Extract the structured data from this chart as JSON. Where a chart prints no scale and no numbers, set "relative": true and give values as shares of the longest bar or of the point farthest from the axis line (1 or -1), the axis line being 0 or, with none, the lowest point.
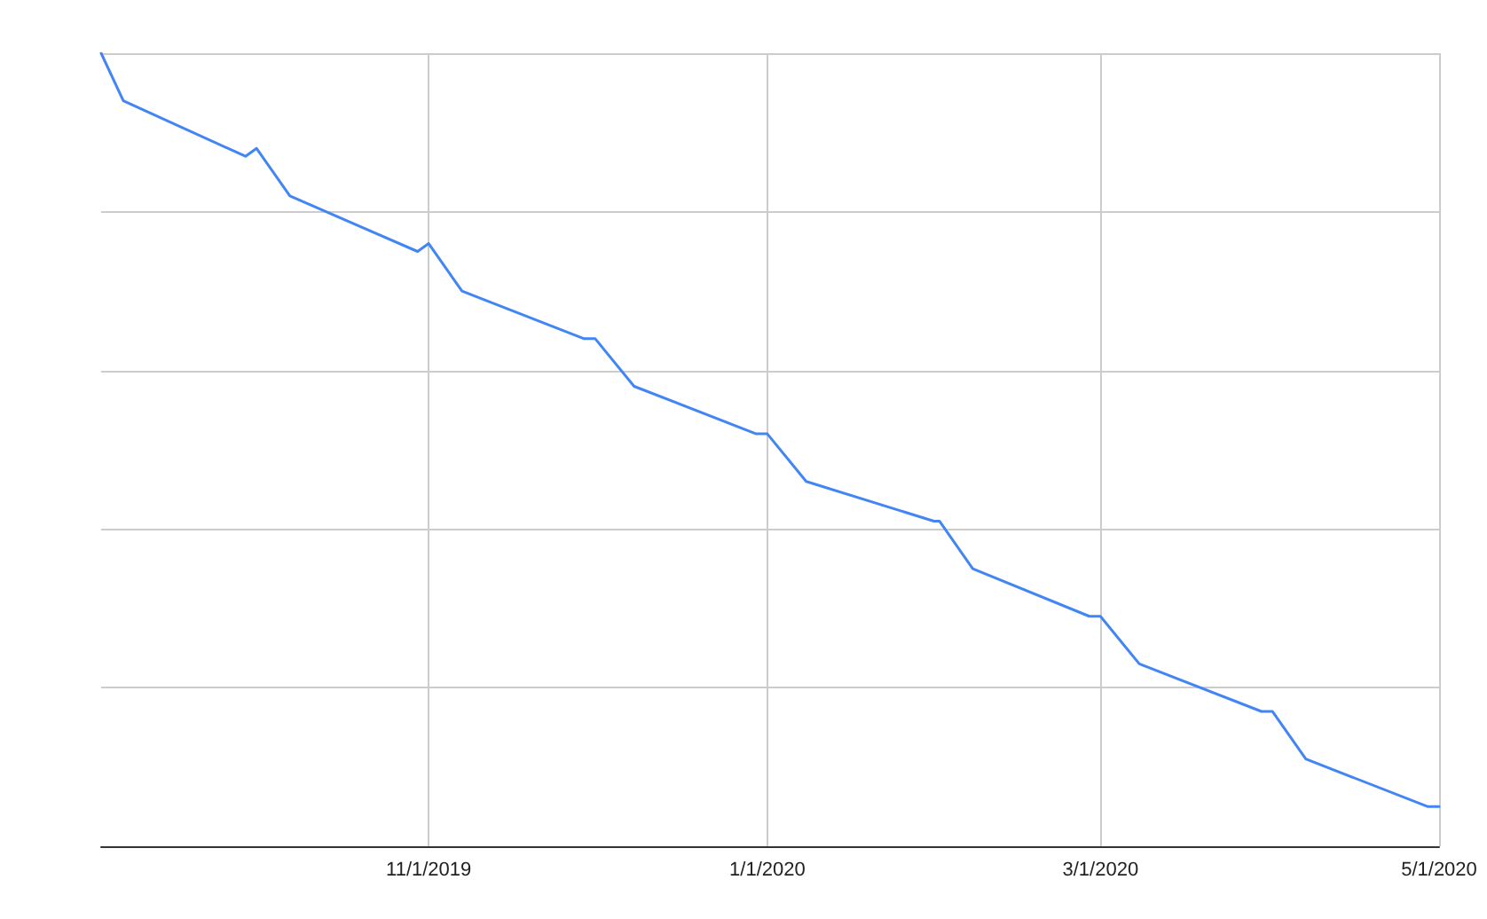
{
  "chart_data": {
    "type": "line",
    "relative": true,
    "grid": true,
    "marker": "none",
    "line_style": "solid",
    "xlim": [
      "2019-09-03",
      "2020-05-01"
    ],
    "xticks": [
      {
        "value": "2019-11-01",
        "label": "11/1/2019"
      },
      {
        "value": "2020-01-01",
        "label": "1/1/2020"
      },
      {
        "value": "2020-03-01",
        "label": "3/1/2020"
      },
      {
        "value": "2020-05-01",
        "label": "5/1/2020"
      }
    ],
    "series": [
      {
        "color": "#4285f4",
        "x": [
          "2019-09-03",
          "2019-09-07",
          "2019-09-29",
          "2019-10-01",
          "2019-10-07",
          "2019-10-30",
          "2019-11-01",
          "2019-11-07",
          "2019-11-29",
          "2019-12-01",
          "2019-12-08",
          "2019-12-30",
          "2020-01-01",
          "2020-01-08",
          "2020-01-31",
          "2020-02-01",
          "2020-02-07",
          "2020-02-28",
          "2020-03-01",
          "2020-03-08",
          "2020-03-30",
          "2020-04-01",
          "2020-04-07",
          "2020-04-29",
          "2020-05-01"
        ],
        "values": [
          1.0,
          0.94,
          0.87,
          0.88,
          0.82,
          0.75,
          0.76,
          0.7,
          0.64,
          0.64,
          0.58,
          0.52,
          0.52,
          0.46,
          0.41,
          0.41,
          0.35,
          0.29,
          0.29,
          0.23,
          0.17,
          0.17,
          0.11,
          0.05,
          0.05
        ]
      }
    ]
  }
}
